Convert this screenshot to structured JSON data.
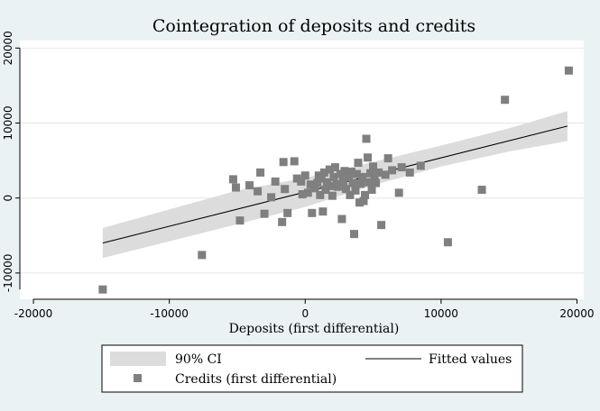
{
  "chart_data": {
    "type": "scatter",
    "title": "Cointegration of deposits and credits",
    "xlabel": "Deposits (first differential)",
    "ylabel": "",
    "xlim": [
      -21000,
      20500
    ],
    "ylim": [
      -13500,
      21000
    ],
    "x_ticks": [
      {
        "value": -20000,
        "label": "-20000"
      },
      {
        "value": -10000,
        "label": "-10000"
      },
      {
        "value": 0,
        "label": "0"
      },
      {
        "value": 10000,
        "label": "10000"
      },
      {
        "value": 20000,
        "label": "20000"
      }
    ],
    "y_ticks": [
      {
        "value": -10000,
        "label": "-10000"
      },
      {
        "value": 0,
        "label": "0"
      },
      {
        "value": 10000,
        "label": "10000"
      },
      {
        "value": 20000,
        "label": "20000"
      }
    ],
    "grid": true,
    "colors": {
      "background": "#eaf2f3",
      "plot_background": "#ffffff",
      "marker": "#7f7f7f",
      "ci_band": "#dcdcdc",
      "fitted_line": "#000000"
    },
    "series": [
      {
        "name": "Credits (first differential)",
        "kind": "scatter",
        "marker": "square",
        "points": [
          {
            "x": -14900,
            "y": -12200
          },
          {
            "x": -7600,
            "y": -7600
          },
          {
            "x": -5300,
            "y": 2500
          },
          {
            "x": -5100,
            "y": 1400
          },
          {
            "x": -4800,
            "y": -3000
          },
          {
            "x": -4100,
            "y": 1700
          },
          {
            "x": -3500,
            "y": 900
          },
          {
            "x": -3300,
            "y": 3400
          },
          {
            "x": -3000,
            "y": -2100
          },
          {
            "x": -2500,
            "y": 100
          },
          {
            "x": -2200,
            "y": 2200
          },
          {
            "x": -1700,
            "y": -3200
          },
          {
            "x": -1500,
            "y": 1200
          },
          {
            "x": -1600,
            "y": 4800
          },
          {
            "x": -1300,
            "y": -2000
          },
          {
            "x": -800,
            "y": 4900
          },
          {
            "x": -600,
            "y": 2600
          },
          {
            "x": -300,
            "y": 2200
          },
          {
            "x": -200,
            "y": 500
          },
          {
            "x": 0,
            "y": 3000
          },
          {
            "x": 200,
            "y": 700
          },
          {
            "x": 400,
            "y": 1800
          },
          {
            "x": 500,
            "y": -2000
          },
          {
            "x": 700,
            "y": 1300
          },
          {
            "x": 900,
            "y": 2000
          },
          {
            "x": 1000,
            "y": 3000
          },
          {
            "x": 1100,
            "y": 400
          },
          {
            "x": 1200,
            "y": 2600
          },
          {
            "x": 1300,
            "y": -1800
          },
          {
            "x": 1400,
            "y": 3400
          },
          {
            "x": 1500,
            "y": 1100
          },
          {
            "x": 1600,
            "y": 2100
          },
          {
            "x": 1800,
            "y": 3800
          },
          {
            "x": 1900,
            "y": 1600
          },
          {
            "x": 2000,
            "y": 300
          },
          {
            "x": 2100,
            "y": 2800
          },
          {
            "x": 2200,
            "y": 4100
          },
          {
            "x": 2300,
            "y": 1900
          },
          {
            "x": 2400,
            "y": 1500
          },
          {
            "x": 2600,
            "y": 3200
          },
          {
            "x": 2700,
            "y": -2800
          },
          {
            "x": 2800,
            "y": 2200
          },
          {
            "x": 2900,
            "y": 3600
          },
          {
            "x": 3000,
            "y": 1200
          },
          {
            "x": 3200,
            "y": 2800
          },
          {
            "x": 3300,
            "y": 400
          },
          {
            "x": 3400,
            "y": 3500
          },
          {
            "x": 3500,
            "y": 2000
          },
          {
            "x": 3600,
            "y": -4800
          },
          {
            "x": 3700,
            "y": 1000
          },
          {
            "x": 3800,
            "y": 3200
          },
          {
            "x": 3900,
            "y": 4700
          },
          {
            "x": 4000,
            "y": -600
          },
          {
            "x": 4100,
            "y": 1900
          },
          {
            "x": 4200,
            "y": 2800
          },
          {
            "x": 4300,
            "y": -400
          },
          {
            "x": 4400,
            "y": 400
          },
          {
            "x": 4500,
            "y": 7900
          },
          {
            "x": 4600,
            "y": 5400
          },
          {
            "x": 4700,
            "y": 2100
          },
          {
            "x": 4800,
            "y": 3300
          },
          {
            "x": 4900,
            "y": 1100
          },
          {
            "x": 5000,
            "y": 4200
          },
          {
            "x": 5100,
            "y": 2600
          },
          {
            "x": 5200,
            "y": 2000
          },
          {
            "x": 5400,
            "y": 3400
          },
          {
            "x": 5600,
            "y": -3600
          },
          {
            "x": 5900,
            "y": 3100
          },
          {
            "x": 6100,
            "y": 5300
          },
          {
            "x": 6400,
            "y": 3700
          },
          {
            "x": 6900,
            "y": 700
          },
          {
            "x": 7100,
            "y": 4100
          },
          {
            "x": 7700,
            "y": 3400
          },
          {
            "x": 8500,
            "y": 4300
          },
          {
            "x": 10500,
            "y": -5900
          },
          {
            "x": 13000,
            "y": 1100
          },
          {
            "x": 14700,
            "y": 13100
          },
          {
            "x": 19400,
            "y": 17000
          }
        ]
      },
      {
        "name": "Fitted values",
        "kind": "line",
        "points": [
          {
            "x": -14900,
            "y": -6000
          },
          {
            "x": 19300,
            "y": 9600
          }
        ]
      },
      {
        "name": "90% CI",
        "kind": "band",
        "upper": [
          {
            "x": -14900,
            "y": -4000
          },
          {
            "x": -5000,
            "y": 1000
          },
          {
            "x": 0,
            "y": 2700
          },
          {
            "x": 5000,
            "y": 4800
          },
          {
            "x": 10000,
            "y": 7000
          },
          {
            "x": 15000,
            "y": 9300
          },
          {
            "x": 19300,
            "y": 11600
          }
        ],
        "lower": [
          {
            "x": -14900,
            "y": -8000
          },
          {
            "x": -5000,
            "y": -3500
          },
          {
            "x": 0,
            "y": -1200
          },
          {
            "x": 5000,
            "y": 1700
          },
          {
            "x": 10000,
            "y": 4200
          },
          {
            "x": 15000,
            "y": 6200
          },
          {
            "x": 19300,
            "y": 7600
          }
        ]
      }
    ],
    "legend": {
      "placement": "bottom",
      "entries": [
        {
          "label": "90% CI",
          "symbol": "band"
        },
        {
          "label": "Fitted values",
          "symbol": "line"
        },
        {
          "label": "Credits (first differential)",
          "symbol": "square"
        }
      ]
    }
  }
}
